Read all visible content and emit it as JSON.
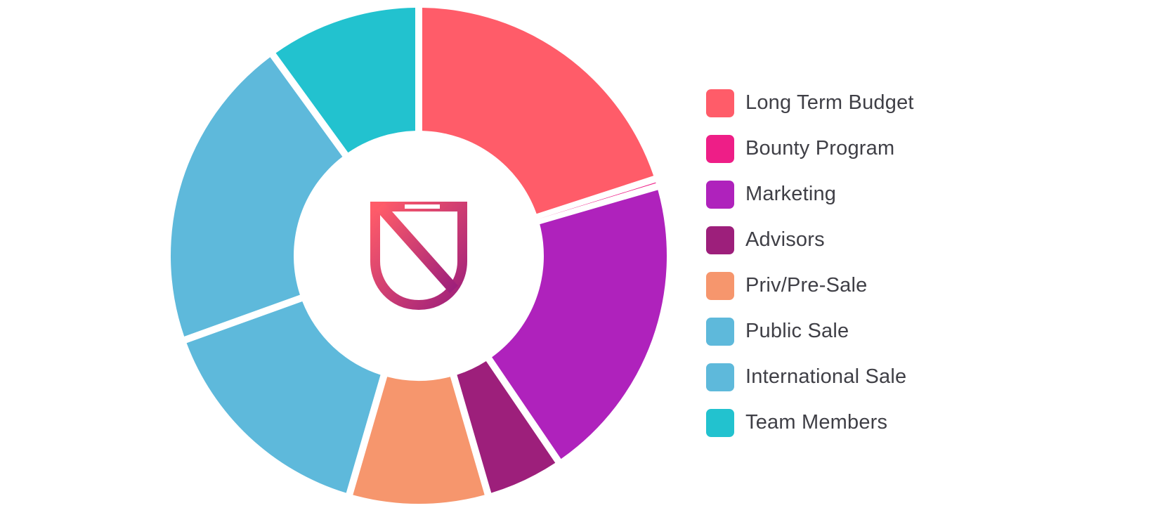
{
  "chart_data": {
    "type": "pie",
    "variant": "donut",
    "legend_position": "right",
    "center_icon": "shield-n-logo-icon",
    "slices": [
      {
        "label": "Long Term Budget",
        "value": 20.0,
        "color": "#ff5c69"
      },
      {
        "label": "Bounty Program",
        "value": 0.5,
        "color": "#ee1e87"
      },
      {
        "label": "Marketing",
        "value": 20.0,
        "color": "#af22bc"
      },
      {
        "label": "Advisors",
        "value": 5.0,
        "color": "#9d1f7b"
      },
      {
        "label": "Priv/Pre-Sale",
        "value": 9.0,
        "color": "#f6966d"
      },
      {
        "label": "Public Sale",
        "value": 15.0,
        "color": "#5eb9db"
      },
      {
        "label": "International Sale",
        "value": 20.5,
        "color": "#5eb9db"
      },
      {
        "label": "Team Members",
        "value": 10.0,
        "color": "#22c2cf"
      }
    ]
  }
}
